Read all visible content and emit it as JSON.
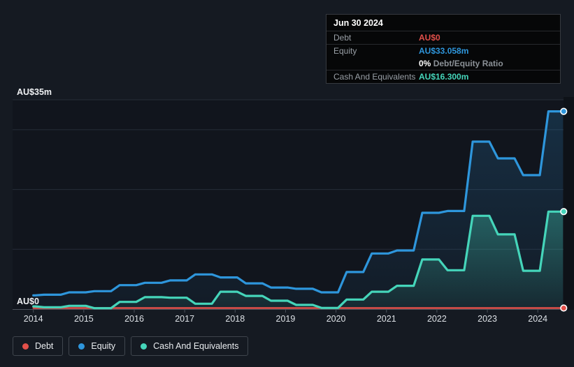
{
  "tooltip": {
    "date": "Jun 30 2024",
    "debt_label": "Debt",
    "debt_value": "AU$0",
    "equity_label": "Equity",
    "equity_value": "AU$33.058m",
    "ratio_percent": "0%",
    "ratio_text": "Debt/Equity Ratio",
    "cash_label": "Cash And Equivalents",
    "cash_value": "AU$16.300m"
  },
  "legend": {
    "items": [
      "Debt",
      "Equity",
      "Cash And Equivalents"
    ]
  },
  "colors": {
    "debt": "#e2504a",
    "equity": "#2e96dc",
    "cash": "#45d5ba",
    "background": "#151a22",
    "plot_background": "#11151d",
    "future_band": "#0a0d12",
    "grid": "#262d38",
    "axis": "#4b525c",
    "tick": "#4a505a",
    "text_primary": "#f0f2f4",
    "text_secondary": "#999fa6"
  },
  "chart_data": {
    "type": "area",
    "y_unit": "AU$ millions",
    "ylim": [
      0,
      35
    ],
    "y_axis_labels": {
      "top": "AU$35m",
      "bottom": "AU$0"
    },
    "y_gridline_values": [
      35,
      30,
      20,
      10,
      0
    ],
    "x_tick_labels": [
      "2014",
      "2015",
      "2016",
      "2017",
      "2018",
      "2019",
      "2020",
      "2021",
      "2022",
      "2023",
      "2024"
    ],
    "x": [
      2014,
      2014.5,
      2015,
      2015.5,
      2016,
      2016.5,
      2017,
      2017.5,
      2018,
      2018.5,
      2019,
      2019.5,
      2020,
      2020.5,
      2021,
      2021.5,
      2022,
      2022.5,
      2023,
      2023.5,
      2024,
      2024.5
    ],
    "series": [
      {
        "name": "Debt",
        "color": "#e2504a",
        "values": [
          0,
          0,
          0,
          0,
          0,
          0,
          0,
          0,
          0,
          0,
          0,
          0,
          0,
          0,
          0,
          0,
          0,
          0,
          0,
          0,
          0,
          0
        ]
      },
      {
        "name": "Equity",
        "color": "#2e96dc",
        "values": [
          2.3,
          2.4,
          2.8,
          3.0,
          4.0,
          4.4,
          4.8,
          5.8,
          5.3,
          4.3,
          3.6,
          3.4,
          2.8,
          6.2,
          9.3,
          9.8,
          16.1,
          16.4,
          28.0,
          25.2,
          22.4,
          33.058
        ]
      },
      {
        "name": "Cash And Equivalents",
        "color": "#45d5ba",
        "values": [
          0.45,
          0.3,
          0.55,
          0.15,
          1.2,
          2.0,
          1.9,
          0.9,
          2.9,
          2.2,
          1.4,
          0.7,
          0.2,
          1.6,
          2.9,
          3.9,
          8.3,
          6.5,
          15.6,
          12.5,
          6.4,
          16.3
        ]
      }
    ]
  }
}
